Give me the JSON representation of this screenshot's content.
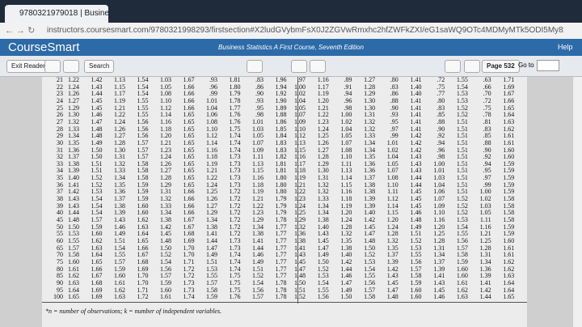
{
  "browser": {
    "tab_title": "9780321979018 | Business ...",
    "url": "instructors.coursesmart.com/9780321998293/firstsection#X2ludGVybmFsX0J2ZGVwRmxhc2hfZWFkZXI/eG1saWQ9OTc4MDMyMTk5ODI5My81MzI="
  },
  "header": {
    "logo": "CourseSmart",
    "book_title": "Business Statistics A First Course, Seventh Edition",
    "help": "Help"
  },
  "toolbar": {
    "exit": "Exit Reader",
    "search": "Search",
    "page": "Page 532",
    "goto": "Go to"
  },
  "table": {
    "rows": [
      [
        "21",
        "1.22",
        "1.42",
        "1.13",
        "1.54",
        "1.03",
        "1.67",
        ".93",
        "1.81",
        ".83",
        "1.96",
        ".97",
        "1.16",
        ".89",
        "1.27",
        ".80",
        "1.41",
        ".72",
        "1.55",
        ".63",
        "1.71"
      ],
      [
        "22",
        "1.24",
        "1.43",
        "1.15",
        "1.54",
        "1.05",
        "1.66",
        ".96",
        "1.80",
        ".86",
        "1.94",
        "1.00",
        "1.17",
        ".91",
        "1.28",
        ".83",
        "1.40",
        ".75",
        "1.54",
        ".66",
        "1.69"
      ],
      [
        "23",
        "1.26",
        "1.44",
        "1.17",
        "1.54",
        "1.08",
        "1.66",
        ".99",
        "1.79",
        ".90",
        "1.92",
        "1.02",
        "1.19",
        ".94",
        "1.29",
        ".86",
        "1.40",
        ".77",
        "1.53",
        ".70",
        "1.67"
      ],
      [
        "24",
        "1.27",
        "1.45",
        "1.19",
        "1.55",
        "1.10",
        "1.66",
        "1.01",
        "1.78",
        ".93",
        "1.90",
        "1.04",
        "1.20",
        ".96",
        "1.30",
        ".88",
        "1.41",
        ".80",
        "1.53",
        ".72",
        "1.66"
      ],
      [
        "25",
        "1.29",
        "1.45",
        "1.21",
        "1.55",
        "1.12",
        "1.66",
        "1.04",
        "1.77",
        ".95",
        "1.89",
        "1.05",
        "1.21",
        ".98",
        "1.30",
        ".90",
        "1.41",
        ".83",
        "1.52",
        ".75",
        "1.65"
      ],
      [
        "26",
        "1.30",
        "1.46",
        "1.22",
        "1.55",
        "1.14",
        "1.65",
        "1.06",
        "1.76",
        ".98",
        "1.88",
        "1.07",
        "1.22",
        "1.00",
        "1.31",
        ".93",
        "1.41",
        ".85",
        "1.52",
        ".78",
        "1.64"
      ],
      [
        "27",
        "1.32",
        "1.47",
        "1.24",
        "1.56",
        "1.16",
        "1.65",
        "1.08",
        "1.76",
        "1.01",
        "1.86",
        "1.09",
        "1.23",
        "1.02",
        "1.32",
        ".95",
        "1.41",
        ".88",
        "1.51",
        ".81",
        "1.63"
      ],
      [
        "28",
        "1.33",
        "1.48",
        "1.26",
        "1.56",
        "1.18",
        "1.65",
        "1.10",
        "1.75",
        "1.03",
        "1.85",
        "1.10",
        "1.24",
        "1.04",
        "1.32",
        ".97",
        "1.41",
        ".90",
        "1.51",
        ".83",
        "1.62"
      ],
      [
        "29",
        "1.34",
        "1.48",
        "1.27",
        "1.56",
        "1.20",
        "1.65",
        "1.12",
        "1.74",
        "1.05",
        "1.84",
        "1.12",
        "1.25",
        "1.05",
        "1.33",
        ".99",
        "1.42",
        ".92",
        "1.51",
        ".85",
        "1.61"
      ],
      [
        "30",
        "1.35",
        "1.49",
        "1.28",
        "1.57",
        "1.21",
        "1.65",
        "1.14",
        "1.74",
        "1.07",
        "1.83",
        "1.13",
        "1.26",
        "1.07",
        "1.34",
        "1.01",
        "1.42",
        ".94",
        "1.51",
        ".88",
        "1.61"
      ],
      [
        "31",
        "1.36",
        "1.50",
        "1.30",
        "1.57",
        "1.23",
        "1.65",
        "1.16",
        "1.74",
        "1.09",
        "1.83",
        "1.15",
        "1.27",
        "1.08",
        "1.34",
        "1.02",
        "1.42",
        ".96",
        "1.51",
        ".90",
        "1.60"
      ],
      [
        "32",
        "1.37",
        "1.50",
        "1.31",
        "1.57",
        "1.24",
        "1.65",
        "1.18",
        "1.73",
        "1.11",
        "1.82",
        "1.16",
        "1.28",
        "1.10",
        "1.35",
        "1.04",
        "1.43",
        ".98",
        "1.51",
        ".92",
        "1.60"
      ],
      [
        "33",
        "1.38",
        "1.51",
        "1.32",
        "1.58",
        "1.26",
        "1.65",
        "1.19",
        "1.73",
        "1.13",
        "1.81",
        "1.17",
        "1.29",
        "1.11",
        "1.36",
        "1.05",
        "1.43",
        "1.00",
        "1.51",
        ".94",
        "1.59"
      ],
      [
        "34",
        "1.39",
        "1.51",
        "1.33",
        "1.58",
        "1.27",
        "1.65",
        "1.21",
        "1.73",
        "1.15",
        "1.81",
        "1.18",
        "1.30",
        "1.13",
        "1.36",
        "1.07",
        "1.43",
        "1.01",
        "1.51",
        ".95",
        "1.59"
      ],
      [
        "35",
        "1.40",
        "1.52",
        "1.34",
        "1.58",
        "1.28",
        "1.65",
        "1.22",
        "1.73",
        "1.16",
        "1.80",
        "1.19",
        "1.31",
        "1.14",
        "1.37",
        "1.08",
        "1.44",
        "1.03",
        "1.51",
        ".97",
        "1.59"
      ],
      [
        "36",
        "1.41",
        "1.52",
        "1.35",
        "1.59",
        "1.29",
        "1.65",
        "1.24",
        "1.73",
        "1.18",
        "1.80",
        "1.21",
        "1.32",
        "1.15",
        "1.38",
        "1.10",
        "1.44",
        "1.04",
        "1.51",
        ".99",
        "1.59"
      ],
      [
        "37",
        "1.42",
        "1.53",
        "1.36",
        "1.59",
        "1.31",
        "1.66",
        "1.25",
        "1.72",
        "1.19",
        "1.80",
        "1.22",
        "1.32",
        "1.16",
        "1.38",
        "1.11",
        "1.45",
        "1.06",
        "1.51",
        "1.00",
        "1.59"
      ],
      [
        "38",
        "1.43",
        "1.54",
        "1.37",
        "1.59",
        "1.32",
        "1.66",
        "1.26",
        "1.72",
        "1.21",
        "1.79",
        "1.23",
        "1.33",
        "1.18",
        "1.39",
        "1.12",
        "1.45",
        "1.07",
        "1.52",
        "1.02",
        "1.58"
      ],
      [
        "39",
        "1.43",
        "1.54",
        "1.38",
        "1.60",
        "1.33",
        "1.66",
        "1.27",
        "1.72",
        "1.22",
        "1.79",
        "1.24",
        "1.34",
        "1.19",
        "1.39",
        "1.14",
        "1.45",
        "1.09",
        "1.52",
        "1.03",
        "1.58"
      ],
      [
        "40",
        "1.44",
        "1.54",
        "1.39",
        "1.60",
        "1.34",
        "1.66",
        "1.29",
        "1.72",
        "1.23",
        "1.79",
        "1.25",
        "1.34",
        "1.20",
        "1.40",
        "1.15",
        "1.46",
        "1.10",
        "1.52",
        "1.05",
        "1.58"
      ],
      [
        "45",
        "1.48",
        "1.57",
        "1.43",
        "1.62",
        "1.38",
        "1.67",
        "1.34",
        "1.72",
        "1.29",
        "1.78",
        "1.29",
        "1.38",
        "1.24",
        "1.42",
        "1.20",
        "1.48",
        "1.16",
        "1.53",
        "1.11",
        "1.58"
      ],
      [
        "50",
        "1.50",
        "1.59",
        "1.46",
        "1.63",
        "1.42",
        "1.67",
        "1.38",
        "1.72",
        "1.34",
        "1.77",
        "1.32",
        "1.40",
        "1.28",
        "1.45",
        "1.24",
        "1.49",
        "1.20",
        "1.54",
        "1.16",
        "1.59"
      ],
      [
        "55",
        "1.53",
        "1.60",
        "1.49",
        "1.64",
        "1.45",
        "1.68",
        "1.41",
        "1.72",
        "1.38",
        "1.77",
        "1.36",
        "1.43",
        "1.32",
        "1.47",
        "1.28",
        "1.51",
        "1.25",
        "1.55",
        "1.21",
        "1.59"
      ],
      [
        "60",
        "1.55",
        "1.62",
        "1.51",
        "1.65",
        "1.48",
        "1.69",
        "1.44",
        "1.73",
        "1.41",
        "1.77",
        "1.38",
        "1.45",
        "1.35",
        "1.48",
        "1.32",
        "1.52",
        "1.28",
        "1.56",
        "1.25",
        "1.60"
      ],
      [
        "65",
        "1.57",
        "1.63",
        "1.54",
        "1.66",
        "1.50",
        "1.70",
        "1.47",
        "1.73",
        "1.44",
        "1.77",
        "1.41",
        "1.47",
        "1.38",
        "1.50",
        "1.35",
        "1.53",
        "1.31",
        "1.57",
        "1.28",
        "1.61"
      ],
      [
        "70",
        "1.58",
        "1.64",
        "1.55",
        "1.67",
        "1.52",
        "1.70",
        "1.49",
        "1.74",
        "1.46",
        "1.77",
        "1.43",
        "1.49",
        "1.40",
        "1.52",
        "1.37",
        "1.55",
        "1.34",
        "1.58",
        "1.31",
        "1.61"
      ],
      [
        "75",
        "1.60",
        "1.65",
        "1.57",
        "1.68",
        "1.54",
        "1.71",
        "1.51",
        "1.74",
        "1.49",
        "1.77",
        "1.45",
        "1.50",
        "1.42",
        "1.53",
        "1.39",
        "1.56",
        "1.37",
        "1.59",
        "1.34",
        "1.62"
      ],
      [
        "80",
        "1.61",
        "1.66",
        "1.59",
        "1.69",
        "1.56",
        "1.72",
        "1.53",
        "1.74",
        "1.51",
        "1.77",
        "1.47",
        "1.52",
        "1.44",
        "1.54",
        "1.42",
        "1.57",
        "1.39",
        "1.60",
        "1.36",
        "1.62"
      ],
      [
        "85",
        "1.62",
        "1.67",
        "1.60",
        "1.70",
        "1.57",
        "1.72",
        "1.55",
        "1.75",
        "1.52",
        "1.77",
        "1.48",
        "1.53",
        "1.46",
        "1.55",
        "1.43",
        "1.58",
        "1.41",
        "1.60",
        "1.39",
        "1.63"
      ],
      [
        "90",
        "1.63",
        "1.68",
        "1.61",
        "1.70",
        "1.59",
        "1.73",
        "1.57",
        "1.75",
        "1.54",
        "1.78",
        "1.50",
        "1.54",
        "1.47",
        "1.56",
        "1.45",
        "1.59",
        "1.43",
        "1.61",
        "1.41",
        "1.64"
      ],
      [
        "95",
        "1.64",
        "1.69",
        "1.62",
        "1.71",
        "1.60",
        "1.73",
        "1.58",
        "1.75",
        "1.56",
        "1.78",
        "1.51",
        "1.55",
        "1.49",
        "1.57",
        "1.47",
        "1.60",
        "1.45",
        "1.62",
        "1.42",
        "1.64"
      ],
      [
        "100",
        "1.65",
        "1.69",
        "1.63",
        "1.72",
        "1.61",
        "1.74",
        "1.59",
        "1.76",
        "1.57",
        "1.78",
        "1.52",
        "1.56",
        "1.50",
        "1.58",
        "1.48",
        "1.60",
        "1.46",
        "1.63",
        "1.44",
        "1.65"
      ]
    ]
  },
  "footnote": "*n = number of observations; k = number of independent variables."
}
